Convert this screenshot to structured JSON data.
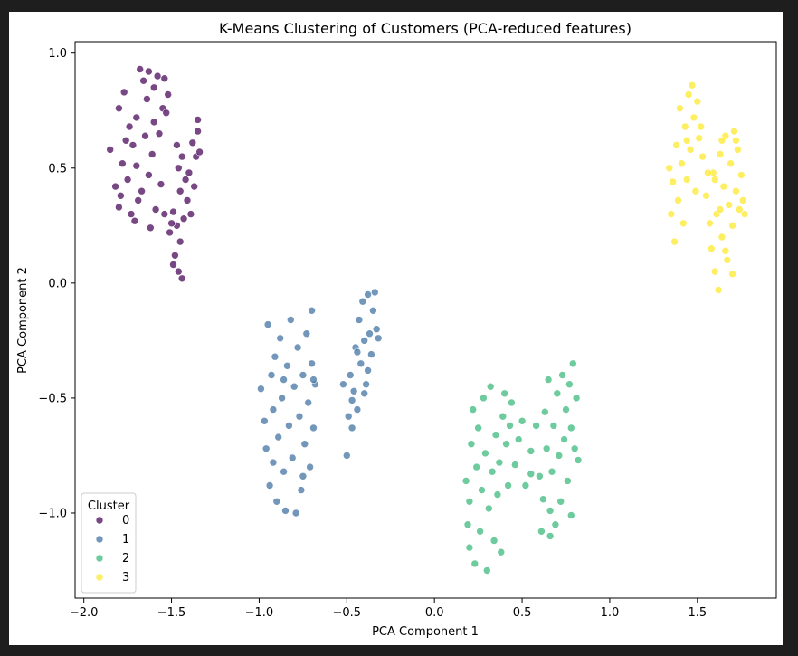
{
  "chart_data": {
    "type": "scatter",
    "title": "K-Means Clustering of Customers (PCA-reduced features)",
    "xlabel": "PCA Component 1",
    "ylabel": "PCA Component 2",
    "xlim": [
      -2.05,
      1.95
    ],
    "ylim": [
      -1.37,
      1.05
    ],
    "xticks": [
      -2.0,
      -1.5,
      -1.0,
      -0.5,
      0.0,
      0.5,
      1.0,
      1.5
    ],
    "xtick_labels": [
      "−2.0",
      "−1.5",
      "−1.0",
      "−0.5",
      "0.0",
      "0.5",
      "1.0",
      "1.5"
    ],
    "yticks": [
      -1.0,
      -0.5,
      0.0,
      0.5,
      1.0
    ],
    "ytick_labels": [
      "−1.0",
      "−0.5",
      "0.0",
      "0.5",
      "1.0"
    ],
    "grid": false,
    "legend": {
      "title": "Cluster",
      "placement": "lower-left"
    },
    "series": [
      {
        "name": "0",
        "color": "#440154",
        "points": [
          [
            -1.85,
            0.58
          ],
          [
            -1.82,
            0.42
          ],
          [
            -1.8,
            0.33
          ],
          [
            -1.78,
            0.52
          ],
          [
            -1.8,
            0.76
          ],
          [
            -1.77,
            0.83
          ],
          [
            -1.74,
            0.68
          ],
          [
            -1.75,
            0.45
          ],
          [
            -1.73,
            0.3
          ],
          [
            -1.72,
            0.6
          ],
          [
            -1.7,
            0.72
          ],
          [
            -1.7,
            0.51
          ],
          [
            -1.69,
            0.36
          ],
          [
            -1.68,
            0.93
          ],
          [
            -1.66,
            0.88
          ],
          [
            -1.65,
            0.64
          ],
          [
            -1.64,
            0.8
          ],
          [
            -1.63,
            0.47
          ],
          [
            -1.62,
            0.24
          ],
          [
            -1.61,
            0.56
          ],
          [
            -1.6,
            0.7
          ],
          [
            -1.6,
            0.85
          ],
          [
            -1.58,
            0.9
          ],
          [
            -1.57,
            0.65
          ],
          [
            -1.56,
            0.43
          ],
          [
            -1.55,
            0.76
          ],
          [
            -1.54,
            0.89
          ],
          [
            -1.53,
            0.74
          ],
          [
            -1.52,
            0.82
          ],
          [
            -1.71,
            0.27
          ],
          [
            -1.76,
            0.62
          ],
          [
            -1.67,
            0.4
          ],
          [
            -1.79,
            0.38
          ],
          [
            -1.59,
            0.32
          ],
          [
            -1.63,
            0.92
          ],
          [
            -1.54,
            0.3
          ],
          [
            -1.51,
            0.22
          ],
          [
            -1.49,
            0.31
          ],
          [
            -1.48,
            0.12
          ],
          [
            -1.47,
            0.25
          ],
          [
            -1.46,
            0.05
          ],
          [
            -1.45,
            0.18
          ],
          [
            -1.44,
            0.02
          ],
          [
            -1.43,
            0.28
          ],
          [
            -1.47,
            0.6
          ],
          [
            -1.46,
            0.5
          ],
          [
            -1.44,
            0.55
          ],
          [
            -1.42,
            0.45
          ],
          [
            -1.41,
            0.36
          ],
          [
            -1.4,
            0.48
          ],
          [
            -1.38,
            0.61
          ],
          [
            -1.37,
            0.42
          ],
          [
            -1.36,
            0.55
          ],
          [
            -1.35,
            0.66
          ],
          [
            -1.34,
            0.57
          ],
          [
            -1.35,
            0.71
          ],
          [
            -1.39,
            0.3
          ],
          [
            -1.45,
            0.4
          ],
          [
            -1.5,
            0.26
          ],
          [
            -1.49,
            0.08
          ]
        ]
      },
      {
        "name": "1",
        "color": "#3b6fa0",
        "points": [
          [
            -0.99,
            -0.46
          ],
          [
            -0.97,
            -0.6
          ],
          [
            -0.96,
            -0.72
          ],
          [
            -0.95,
            -0.18
          ],
          [
            -0.94,
            -0.88
          ],
          [
            -0.93,
            -0.4
          ],
          [
            -0.92,
            -0.55
          ],
          [
            -0.91,
            -0.32
          ],
          [
            -0.9,
            -0.95
          ],
          [
            -0.89,
            -0.67
          ],
          [
            -0.88,
            -0.24
          ],
          [
            -0.87,
            -0.5
          ],
          [
            -0.86,
            -0.82
          ],
          [
            -0.85,
            -0.99
          ],
          [
            -0.84,
            -0.36
          ],
          [
            -0.83,
            -0.62
          ],
          [
            -0.82,
            -0.16
          ],
          [
            -0.81,
            -0.76
          ],
          [
            -0.8,
            -0.45
          ],
          [
            -0.79,
            -1.0
          ],
          [
            -0.78,
            -0.28
          ],
          [
            -0.77,
            -0.58
          ],
          [
            -0.76,
            -0.9
          ],
          [
            -0.75,
            -0.4
          ],
          [
            -0.74,
            -0.7
          ],
          [
            -0.73,
            -0.22
          ],
          [
            -0.72,
            -0.52
          ],
          [
            -0.71,
            -0.8
          ],
          [
            -0.7,
            -0.35
          ],
          [
            -0.69,
            -0.63
          ],
          [
            -0.68,
            -0.44
          ],
          [
            -0.7,
            -0.12
          ],
          [
            -0.75,
            -0.84
          ],
          [
            -0.86,
            -0.42
          ],
          [
            -0.92,
            -0.78
          ],
          [
            -0.69,
            -0.42
          ],
          [
            -0.52,
            -0.44
          ],
          [
            -0.5,
            -0.75
          ],
          [
            -0.49,
            -0.58
          ],
          [
            -0.48,
            -0.4
          ],
          [
            -0.47,
            -0.63
          ],
          [
            -0.46,
            -0.47
          ],
          [
            -0.45,
            -0.28
          ],
          [
            -0.44,
            -0.55
          ],
          [
            -0.43,
            -0.16
          ],
          [
            -0.42,
            -0.35
          ],
          [
            -0.41,
            -0.08
          ],
          [
            -0.4,
            -0.25
          ],
          [
            -0.39,
            -0.44
          ],
          [
            -0.38,
            -0.05
          ],
          [
            -0.37,
            -0.22
          ],
          [
            -0.36,
            -0.31
          ],
          [
            -0.35,
            -0.12
          ],
          [
            -0.34,
            -0.04
          ],
          [
            -0.33,
            -0.2
          ],
          [
            -0.32,
            -0.24
          ],
          [
            -0.38,
            -0.38
          ],
          [
            -0.44,
            -0.3
          ],
          [
            -0.47,
            -0.51
          ],
          [
            -0.4,
            -0.48
          ]
        ]
      },
      {
        "name": "2",
        "color": "#35b779",
        "points": [
          [
            0.18,
            -0.86
          ],
          [
            0.19,
            -1.05
          ],
          [
            0.2,
            -1.15
          ],
          [
            0.2,
            -0.95
          ],
          [
            0.21,
            -0.7
          ],
          [
            0.22,
            -0.55
          ],
          [
            0.23,
            -1.22
          ],
          [
            0.24,
            -0.8
          ],
          [
            0.25,
            -0.63
          ],
          [
            0.26,
            -1.08
          ],
          [
            0.27,
            -0.9
          ],
          [
            0.28,
            -0.5
          ],
          [
            0.29,
            -0.74
          ],
          [
            0.3,
            -1.25
          ],
          [
            0.31,
            -0.98
          ],
          [
            0.32,
            -0.45
          ],
          [
            0.33,
            -0.82
          ],
          [
            0.34,
            -1.12
          ],
          [
            0.35,
            -0.66
          ],
          [
            0.36,
            -0.92
          ],
          [
            0.37,
            -0.78
          ],
          [
            0.38,
            -1.17
          ],
          [
            0.39,
            -0.58
          ],
          [
            0.4,
            -0.48
          ],
          [
            0.41,
            -0.7
          ],
          [
            0.42,
            -0.88
          ],
          [
            0.43,
            -0.62
          ],
          [
            0.44,
            -0.52
          ],
          [
            0.46,
            -0.79
          ],
          [
            0.48,
            -0.68
          ],
          [
            0.5,
            -0.6
          ],
          [
            0.52,
            -0.88
          ],
          [
            0.55,
            -0.73
          ],
          [
            0.58,
            -0.62
          ],
          [
            0.6,
            -0.84
          ],
          [
            0.62,
            -0.94
          ],
          [
            0.63,
            -0.56
          ],
          [
            0.64,
            -0.72
          ],
          [
            0.65,
            -0.42
          ],
          [
            0.66,
            -1.1
          ],
          [
            0.67,
            -0.82
          ],
          [
            0.68,
            -0.62
          ],
          [
            0.69,
            -1.05
          ],
          [
            0.7,
            -0.48
          ],
          [
            0.71,
            -0.75
          ],
          [
            0.72,
            -0.95
          ],
          [
            0.73,
            -0.4
          ],
          [
            0.74,
            -0.68
          ],
          [
            0.75,
            -0.55
          ],
          [
            0.76,
            -0.86
          ],
          [
            0.77,
            -0.44
          ],
          [
            0.78,
            -0.63
          ],
          [
            0.79,
            -0.35
          ],
          [
            0.8,
            -0.72
          ],
          [
            0.81,
            -0.5
          ],
          [
            0.82,
            -0.77
          ],
          [
            0.61,
            -1.08
          ],
          [
            0.66,
            -0.99
          ],
          [
            0.55,
            -0.83
          ],
          [
            0.78,
            -1.01
          ]
        ]
      },
      {
        "name": "3",
        "color": "#fde725",
        "points": [
          [
            1.34,
            0.5
          ],
          [
            1.35,
            0.3
          ],
          [
            1.36,
            0.44
          ],
          [
            1.37,
            0.18
          ],
          [
            1.38,
            0.6
          ],
          [
            1.39,
            0.36
          ],
          [
            1.4,
            0.76
          ],
          [
            1.41,
            0.52
          ],
          [
            1.42,
            0.26
          ],
          [
            1.43,
            0.68
          ],
          [
            1.44,
            0.45
          ],
          [
            1.45,
            0.82
          ],
          [
            1.46,
            0.58
          ],
          [
            1.47,
            0.86
          ],
          [
            1.48,
            0.72
          ],
          [
            1.49,
            0.4
          ],
          [
            1.5,
            0.79
          ],
          [
            1.51,
            0.63
          ],
          [
            1.52,
            0.68
          ],
          [
            1.53,
            0.55
          ],
          [
            1.55,
            0.38
          ],
          [
            1.57,
            0.26
          ],
          [
            1.58,
            0.15
          ],
          [
            1.59,
            0.48
          ],
          [
            1.6,
            0.05
          ],
          [
            1.61,
            0.3
          ],
          [
            1.62,
            -0.03
          ],
          [
            1.63,
            0.56
          ],
          [
            1.64,
            0.2
          ],
          [
            1.65,
            0.42
          ],
          [
            1.66,
            0.64
          ],
          [
            1.67,
            0.1
          ],
          [
            1.68,
            0.34
          ],
          [
            1.69,
            0.52
          ],
          [
            1.7,
            0.25
          ],
          [
            1.71,
            0.66
          ],
          [
            1.72,
            0.4
          ],
          [
            1.73,
            0.58
          ],
          [
            1.74,
            0.32
          ],
          [
            1.75,
            0.47
          ],
          [
            1.76,
            0.36
          ],
          [
            1.77,
            0.3
          ],
          [
            1.7,
            0.04
          ],
          [
            1.64,
            0.62
          ],
          [
            1.6,
            0.45
          ],
          [
            1.66,
            0.14
          ],
          [
            1.72,
            0.62
          ],
          [
            1.63,
            0.32
          ],
          [
            1.56,
            0.48
          ],
          [
            1.44,
            0.62
          ]
        ]
      }
    ]
  }
}
